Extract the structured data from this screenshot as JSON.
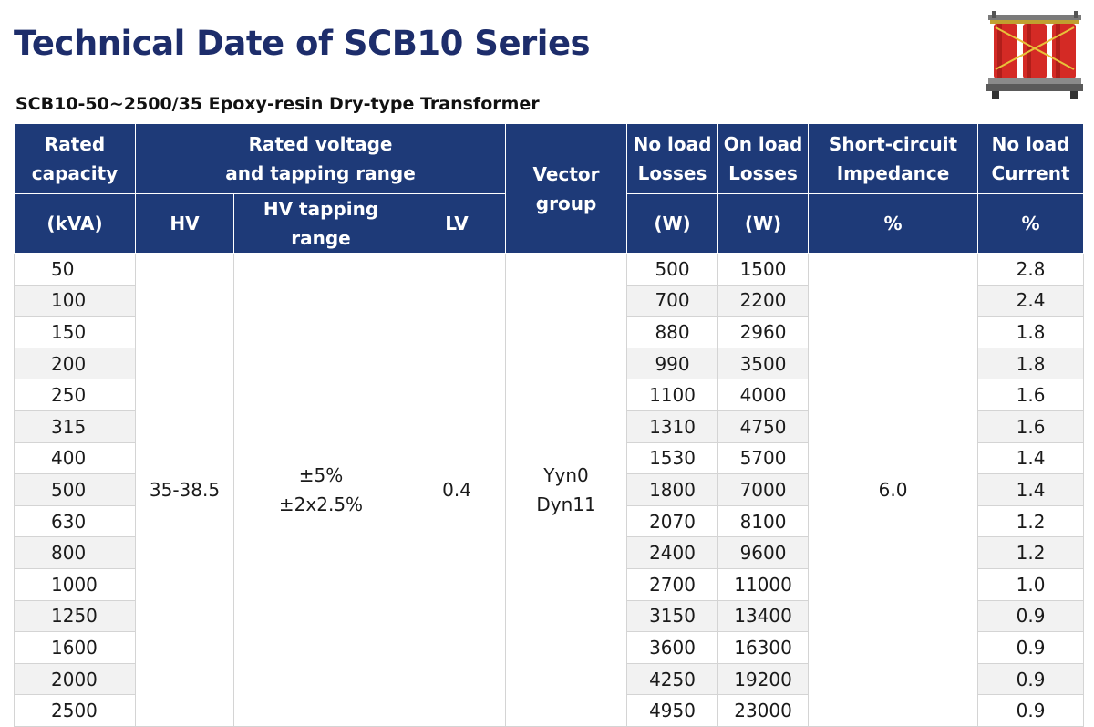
{
  "title": "Technical Date of SCB10 Series",
  "subtitle": "SCB10-50~2500/35  Epoxy-resin Dry-type Transformer",
  "colors": {
    "title": "#1d2d6b",
    "header_bg": "#1e3a78",
    "header_text": "#ffffff",
    "row_alt": "#f2f2f2"
  },
  "image": {
    "icon": "cast-resin-transformer-icon"
  },
  "header": {
    "rated_capacity": [
      "Rated",
      "capacity"
    ],
    "rated_voltage": [
      "Rated voltage",
      "and tapping range"
    ],
    "vector_group": [
      "Vector",
      "group"
    ],
    "no_load_losses": [
      "No load",
      "Losses"
    ],
    "on_load_losses": [
      "On load",
      "Losses"
    ],
    "short_circuit": [
      "Short-circuit",
      "Impedance"
    ],
    "no_load_current": [
      "No load",
      "Current"
    ],
    "units": {
      "capacity": "(kVA)",
      "hv": "HV",
      "hv_tapping": "HV tapping range",
      "lv": "LV",
      "no_load_losses": "(W)",
      "on_load_losses": "(W)",
      "short_circuit": "%",
      "no_load_current": "%"
    }
  },
  "common": {
    "hv": "35-38.5",
    "tapping": [
      "±5%",
      "±2x2.5%"
    ],
    "lv": "0.4",
    "vector_group": [
      "Yyn0",
      "Dyn11"
    ],
    "impedance": "6.0"
  },
  "rows": [
    {
      "capacity": "50",
      "no_load": "500",
      "on_load": "1500",
      "current": "2.8"
    },
    {
      "capacity": "100",
      "no_load": "700",
      "on_load": "2200",
      "current": "2.4"
    },
    {
      "capacity": "150",
      "no_load": "880",
      "on_load": "2960",
      "current": "1.8"
    },
    {
      "capacity": "200",
      "no_load": "990",
      "on_load": "3500",
      "current": "1.8"
    },
    {
      "capacity": "250",
      "no_load": "1100",
      "on_load": "4000",
      "current": "1.6"
    },
    {
      "capacity": "315",
      "no_load": "1310",
      "on_load": "4750",
      "current": "1.6"
    },
    {
      "capacity": "400",
      "no_load": "1530",
      "on_load": "5700",
      "current": "1.4"
    },
    {
      "capacity": "500",
      "no_load": "1800",
      "on_load": "7000",
      "current": "1.4"
    },
    {
      "capacity": "630",
      "no_load": "2070",
      "on_load": "8100",
      "current": "1.2"
    },
    {
      "capacity": "800",
      "no_load": "2400",
      "on_load": "9600",
      "current": "1.2"
    },
    {
      "capacity": "1000",
      "no_load": "2700",
      "on_load": "11000",
      "current": "1.0"
    },
    {
      "capacity": "1250",
      "no_load": "3150",
      "on_load": "13400",
      "current": "0.9"
    },
    {
      "capacity": "1600",
      "no_load": "3600",
      "on_load": "16300",
      "current": "0.9"
    },
    {
      "capacity": "2000",
      "no_load": "4250",
      "on_load": "19200",
      "current": "0.9"
    },
    {
      "capacity": "2500",
      "no_load": "4950",
      "on_load": "23000",
      "current": "0.9"
    }
  ]
}
